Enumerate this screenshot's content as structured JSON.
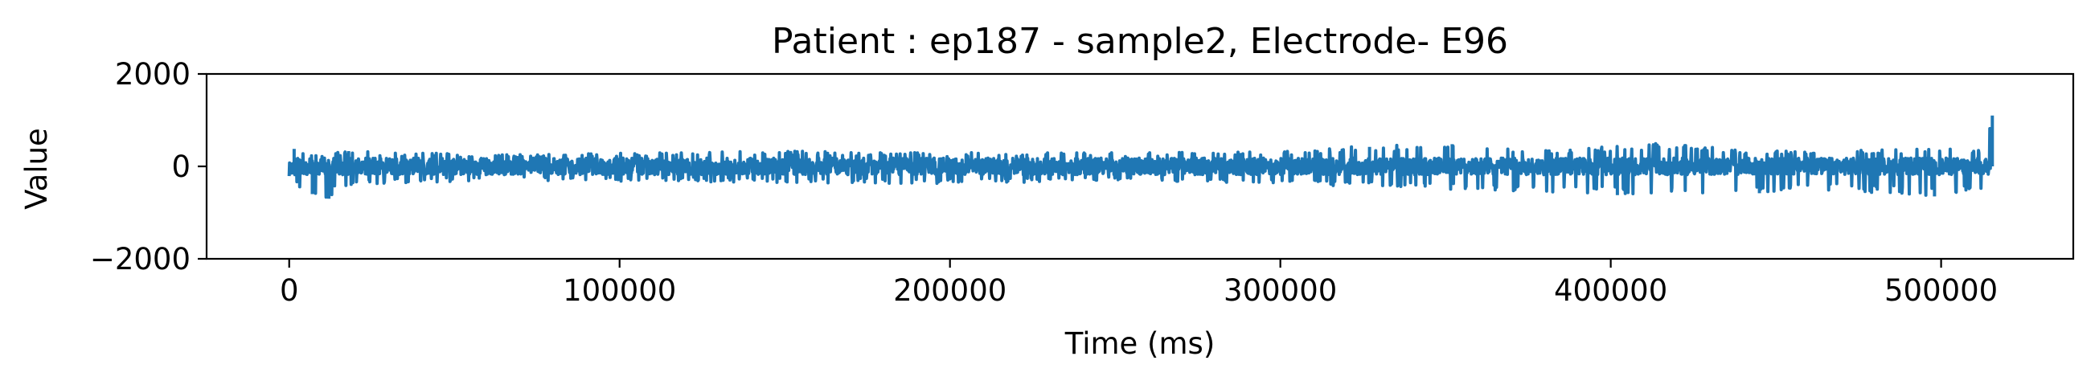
{
  "chart_data": {
    "type": "line",
    "title": "Patient : ep187 - sample2, Electrode- E96",
    "xlabel": "Time (ms)",
    "ylabel": "Value",
    "xlim": [
      -25000,
      540000
    ],
    "ylim": [
      -2000,
      2000
    ],
    "x_ticks": [
      0,
      100000,
      200000,
      300000,
      400000,
      500000
    ],
    "x_tick_labels": [
      "0",
      "100000",
      "200000",
      "300000",
      "400000",
      "500000"
    ],
    "y_ticks": [
      -2000,
      0,
      2000
    ],
    "y_tick_labels": [
      "−2000",
      "0",
      "2000"
    ],
    "grid": false,
    "series": [
      {
        "color": "#1f77b4",
        "x_start": 0,
        "x_end": 515000,
        "baseline": 0,
        "typical_amplitude": 180,
        "envelope_max": [
          [
            0,
            350
          ],
          [
            5000,
            300
          ],
          [
            10000,
            280
          ],
          [
            20000,
            330
          ],
          [
            60000,
            260
          ],
          [
            100000,
            300
          ],
          [
            150000,
            330
          ],
          [
            200000,
            300
          ],
          [
            250000,
            300
          ],
          [
            300000,
            320
          ],
          [
            325000,
            450
          ],
          [
            355000,
            480
          ],
          [
            380000,
            360
          ],
          [
            412000,
            500
          ],
          [
            450000,
            330
          ],
          [
            500000,
            380
          ],
          [
            514000,
            400
          ],
          [
            515000,
            1100
          ]
        ],
        "envelope_min": [
          [
            0,
            -300
          ],
          [
            5000,
            -550
          ],
          [
            10000,
            -700
          ],
          [
            20000,
            -400
          ],
          [
            60000,
            -300
          ],
          [
            100000,
            -320
          ],
          [
            150000,
            -350
          ],
          [
            200000,
            -380
          ],
          [
            250000,
            -320
          ],
          [
            300000,
            -380
          ],
          [
            350000,
            -500
          ],
          [
            402000,
            -600
          ],
          [
            445000,
            -560
          ],
          [
            465000,
            -520
          ],
          [
            500000,
            -650
          ],
          [
            514000,
            -450
          ],
          [
            515000,
            -100
          ]
        ],
        "spikes": [
          [
            1500,
            380
          ],
          [
            7000,
            -600
          ],
          [
            12000,
            -700
          ],
          [
            18000,
            330
          ],
          [
            327000,
            420
          ],
          [
            352000,
            480
          ],
          [
            413000,
            500
          ],
          [
            402000,
            -620
          ],
          [
            445000,
            -580
          ],
          [
            498000,
            -650
          ],
          [
            515500,
            1100
          ]
        ]
      }
    ]
  }
}
